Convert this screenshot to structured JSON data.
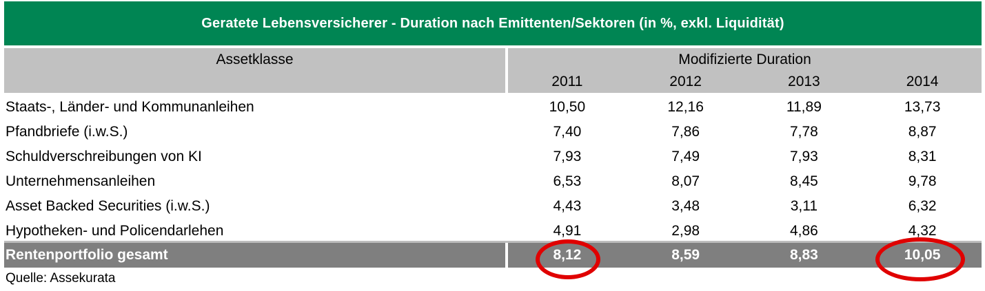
{
  "chart_data": {
    "type": "table",
    "title": "Geratete Lebensversicherer - Duration nach Emittenten/Sektoren (in %, exkl. Liquidität)",
    "header": {
      "left": "Assetklasse",
      "group": "Modifizierte Duration",
      "years": [
        "2011",
        "2012",
        "2013",
        "2014"
      ]
    },
    "rows": [
      {
        "label": "Staats-, Länder- und Kommunanleihen",
        "values": [
          "10,50",
          "12,16",
          "11,89",
          "13,73"
        ]
      },
      {
        "label": "Pfandbriefe (i.w.S.)",
        "values": [
          "7,40",
          "7,86",
          "7,78",
          "8,87"
        ]
      },
      {
        "label": "Schuldverschreibungen von KI",
        "values": [
          "7,93",
          "7,49",
          "7,93",
          "8,31"
        ]
      },
      {
        "label": "Unternehmensanleihen",
        "values": [
          "6,53",
          "8,07",
          "8,45",
          "9,78"
        ]
      },
      {
        "label": "Asset Backed Securities (i.w.S.)",
        "values": [
          "4,43",
          "3,48",
          "3,11",
          "6,32"
        ]
      },
      {
        "label": "Hypotheken- und Policendarlehen",
        "values": [
          "4,91",
          "2,98",
          "4,86",
          "4,32"
        ]
      }
    ],
    "total": {
      "label": "Rentenportfolio gesamt",
      "values": [
        "8,12",
        "8,59",
        "8,83",
        "10,05"
      ],
      "circled_year_indexes": [
        0,
        3
      ]
    },
    "source": "Quelle: Assekurata",
    "layout": {
      "legend": "none",
      "grid": "off"
    }
  },
  "colors": {
    "green": "#008553",
    "header_gray": "#C1C1C1",
    "total_gray": "#7F7F7F",
    "separator_gray": "#BDBDBD",
    "highlight_red": "#E00000"
  }
}
